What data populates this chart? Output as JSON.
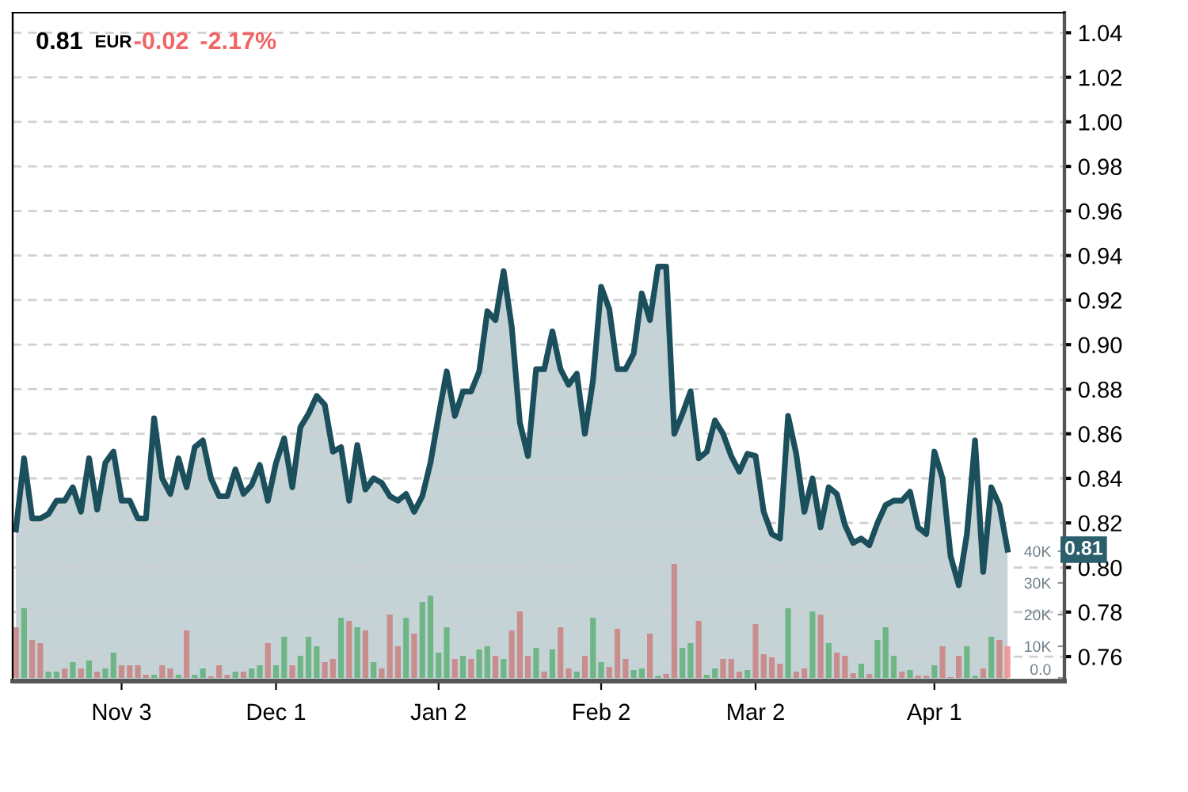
{
  "chart_data": {
    "type": "area",
    "annotations": [
      "0.81",
      "EUR",
      "-0.02",
      "-2.17%",
      "0.81"
    ],
    "categories": [
      null,
      null,
      null,
      null,
      null,
      null,
      null,
      null,
      null,
      null,
      null,
      null,
      null,
      "Nov 3",
      null,
      null,
      null,
      null,
      null,
      null,
      null,
      null,
      null,
      null,
      null,
      null,
      null,
      null,
      null,
      null,
      null,
      null,
      "Dec 1",
      null,
      null,
      null,
      null,
      null,
      null,
      null,
      null,
      null,
      null,
      null,
      null,
      null,
      null,
      null,
      null,
      null,
      null,
      null,
      "Jan 2",
      null,
      null,
      null,
      null,
      null,
      null,
      null,
      null,
      null,
      null,
      null,
      null,
      null,
      null,
      null,
      null,
      null,
      null,
      null,
      "Feb 2",
      null,
      null,
      null,
      null,
      null,
      null,
      null,
      null,
      null,
      null,
      null,
      null,
      null,
      null,
      null,
      null,
      null,
      null,
      "Mar 2",
      null,
      null,
      null,
      null,
      null,
      null,
      null,
      null,
      null,
      null,
      null,
      null,
      null,
      null,
      null,
      null,
      null,
      null,
      null,
      null,
      null,
      "Apr 1",
      null,
      null,
      null,
      null,
      null,
      null,
      null,
      null,
      null
    ],
    "series": [
      {
        "color": "#1b4f5c",
        "values": [
          0.817,
          0.849,
          0.822,
          0.822,
          0.824,
          0.83,
          0.83,
          0.836,
          0.825,
          0.849,
          0.826,
          0.847,
          0.852,
          0.83,
          0.83,
          0.822,
          0.822,
          0.867,
          0.84,
          0.833,
          0.849,
          0.836,
          0.854,
          0.857,
          0.84,
          0.832,
          0.832,
          0.844,
          0.833,
          0.837,
          0.846,
          0.83,
          0.847,
          0.858,
          0.836,
          0.863,
          0.869,
          0.877,
          0.873,
          0.852,
          0.854,
          0.83,
          0.855,
          0.835,
          0.84,
          0.838,
          0.832,
          0.83,
          0.833,
          0.825,
          0.832,
          0.847,
          0.868,
          0.888,
          0.868,
          0.879,
          0.879,
          0.888,
          0.915,
          0.911,
          0.933,
          0.908,
          0.865,
          0.85,
          0.889,
          0.889,
          0.906,
          0.889,
          0.882,
          0.887,
          0.86,
          0.884,
          0.926,
          0.916,
          0.889,
          0.889,
          0.896,
          0.923,
          0.911,
          0.935,
          0.935,
          0.86,
          0.869,
          0.879,
          0.849,
          0.852,
          0.866,
          0.86,
          0.85,
          0.843,
          0.851,
          0.85,
          0.825,
          0.815,
          0.813,
          0.868,
          0.851,
          0.825,
          0.84,
          0.818,
          0.836,
          0.833,
          0.819,
          0.811,
          0.813,
          0.81,
          0.82,
          0.828,
          0.83,
          0.83,
          0.834,
          0.818,
          0.815,
          0.852,
          0.84,
          0.805,
          0.792,
          0.815,
          0.857,
          0.798,
          0.836,
          0.828,
          0.808
        ]
      },
      {
        "type": "bar",
        "axis": "y2",
        "values": [
          16000,
          22000,
          12000,
          11000,
          2000,
          2000,
          3000,
          5000,
          3000,
          5500,
          2000,
          3000,
          8000,
          4000,
          4000,
          4000,
          1000,
          1000,
          4000,
          3000,
          1000,
          15000,
          1000,
          3000,
          500,
          4000,
          1000,
          2000,
          2000,
          3000,
          4000,
          11000,
          4000,
          13000,
          4000,
          7000,
          13000,
          10000,
          5000,
          6000,
          19000,
          18000,
          16000,
          15000,
          5000,
          3000,
          20000,
          10000,
          19000,
          14000,
          24000,
          26000,
          8000,
          16000,
          6000,
          7000,
          6000,
          9000,
          10000,
          7000,
          6000,
          15000,
          21000,
          7000,
          9500,
          2000,
          9000,
          16000,
          3000,
          2000,
          7000,
          19000,
          5000,
          3500,
          15500,
          6000,
          2500,
          3000,
          14000,
          700,
          1300,
          36000,
          9500,
          11000,
          18000,
          1000,
          3000,
          6000,
          6000,
          2000,
          2500,
          17000,
          7500,
          6500,
          4500,
          22000,
          2000,
          3000,
          21000,
          20000,
          11000,
          8000,
          7000,
          1500,
          4500,
          1200,
          12000,
          16000,
          7000,
          2000,
          2500,
          700,
          700,
          4000,
          10000,
          300,
          7000,
          10000,
          700,
          3000,
          13000,
          12000,
          10000
        ],
        "colors": [
          "#c98080",
          "#5fb079",
          "#c98080",
          "#c98080",
          "#5fb079",
          "#5fb079",
          "#c98080",
          "#5fb079",
          "#c98080",
          "#5fb079",
          "#c98080",
          "#5fb079",
          "#5fb079",
          "#c98080",
          "#c98080",
          "#c98080",
          "#c98080",
          "#5fb079",
          "#c98080",
          "#c98080",
          "#5fb079",
          "#c98080",
          "#5fb079",
          "#5fb079",
          "#c98080",
          "#c98080",
          "#c98080",
          "#5fb079",
          "#c98080",
          "#5fb079",
          "#5fb079",
          "#c98080",
          "#5fb079",
          "#5fb079",
          "#c98080",
          "#5fb079",
          "#5fb079",
          "#5fb079",
          "#c98080",
          "#c98080",
          "#5fb079",
          "#c98080",
          "#5fb079",
          "#c98080",
          "#5fb079",
          "#c98080",
          "#c98080",
          "#c98080",
          "#5fb079",
          "#c98080",
          "#5fb079",
          "#5fb079",
          "#5fb079",
          "#5fb079",
          "#c98080",
          "#5fb079",
          "#c98080",
          "#5fb079",
          "#5fb079",
          "#c98080",
          "#5fb079",
          "#c98080",
          "#c98080",
          "#c98080",
          "#5fb079",
          "#c98080",
          "#5fb079",
          "#c98080",
          "#c98080",
          "#5fb079",
          "#c98080",
          "#5fb079",
          "#5fb079",
          "#c98080",
          "#c98080",
          "#c98080",
          "#5fb079",
          "#5fb079",
          "#c98080",
          "#5fb079",
          "#c98080",
          "#c98080",
          "#5fb079",
          "#5fb079",
          "#c98080",
          "#5fb079",
          "#5fb079",
          "#c98080",
          "#c98080",
          "#c98080",
          "#5fb079",
          "#c98080",
          "#c98080",
          "#c98080",
          "#c98080",
          "#5fb079",
          "#c98080",
          "#c98080",
          "#5fb079",
          "#c98080",
          "#5fb079",
          "#c98080",
          "#c98080",
          "#c98080",
          "#5fb079",
          "#c98080",
          "#5fb079",
          "#5fb079",
          "#5fb079",
          "#c98080",
          "#5fb079",
          "#c98080",
          "#c98080",
          "#5fb079",
          "#c98080",
          "#c98080",
          "#c98080",
          "#5fb079",
          "#5fb079",
          "#c98080",
          "#5fb079",
          "#c98080",
          "#f28b8b"
        ]
      }
    ],
    "ylim": [
      0.749,
      1.049
    ],
    "yticks": [
      {
        "value": 0.76,
        "label": "0.76"
      },
      {
        "value": 0.78,
        "label": "0.78"
      },
      {
        "value": 0.8,
        "label": "0.80"
      },
      {
        "value": 0.82,
        "label": "0.82"
      },
      {
        "value": 0.84,
        "label": "0.84"
      },
      {
        "value": 0.86,
        "label": "0.86"
      },
      {
        "value": 0.88,
        "label": "0.88"
      },
      {
        "value": 0.9,
        "label": "0.90"
      },
      {
        "value": 0.92,
        "label": "0.92"
      },
      {
        "value": 0.94,
        "label": "0.94"
      },
      {
        "value": 0.96,
        "label": "0.96"
      },
      {
        "value": 0.98,
        "label": "0.98"
      },
      {
        "value": 1.0,
        "label": "1.00"
      },
      {
        "value": 1.02,
        "label": "1.02"
      },
      {
        "value": 1.04,
        "label": "1.04"
      }
    ],
    "y2lim": [
      -1000,
      210000
    ],
    "y2ticks": [
      {
        "value": 0,
        "label": "0.0"
      },
      {
        "value": 10000,
        "label": "10K"
      },
      {
        "value": 20000,
        "label": "20K"
      },
      {
        "value": 30000,
        "label": "30K"
      },
      {
        "value": 40000,
        "label": "40K"
      }
    ],
    "grid": "y"
  }
}
